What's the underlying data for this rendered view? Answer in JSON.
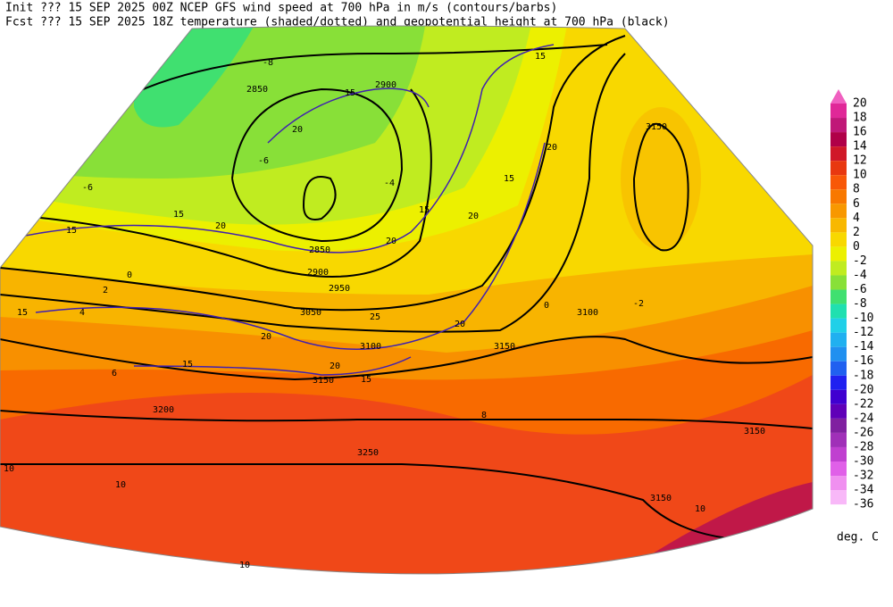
{
  "header": {
    "line1": "Init  ??? 15 SEP 2025 00Z  NCEP GFS wind speed at 700 hPa in m/s (contours/barbs)",
    "line2": "Fcst ??? 15 SEP 2025 18Z  temperature (shaded/dotted) and geopotential height at 700 hPa (black)"
  },
  "colorbar": {
    "unit": "deg. C",
    "levels": [
      20,
      18,
      16,
      14,
      12,
      10,
      8,
      6,
      4,
      2,
      0,
      -2,
      -4,
      -6,
      -8,
      -10,
      -12,
      -14,
      -16,
      -18,
      -20,
      -22,
      -24,
      -26,
      -28,
      -30,
      -32,
      -34,
      -36
    ],
    "colors": [
      "#f060c0",
      "#e02898",
      "#c01878",
      "#b00048",
      "#d01828",
      "#e83810",
      "#f85808",
      "#f87800",
      "#f89800",
      "#f8b800",
      "#f8d800",
      "#ecf000",
      "#c0ec20",
      "#88e038",
      "#40e070",
      "#20e0b0",
      "#20d0e8",
      "#20b0f0",
      "#2090f0",
      "#2060f0",
      "#2020f0",
      "#4000d0",
      "#6000b8",
      "#8020a0",
      "#a030b8",
      "#c040d0",
      "#e060e8",
      "#f090f0",
      "#f8b8f8"
    ]
  },
  "map": {
    "height_labels": [
      2850,
      2900,
      2950,
      2850,
      2900,
      3050,
      3100,
      3150,
      3100,
      3150,
      3200,
      3250,
      3150,
      3150,
      3150
    ],
    "wind_labels": [
      15,
      15,
      20,
      15,
      20,
      15,
      20,
      20,
      15,
      25,
      20,
      15,
      20,
      15,
      20,
      15,
      15,
      20
    ],
    "temperature_labels": [
      -8,
      -6,
      -6,
      -4,
      -2,
      0,
      0,
      2,
      4,
      6,
      8,
      10,
      10,
      10,
      10
    ]
  }
}
